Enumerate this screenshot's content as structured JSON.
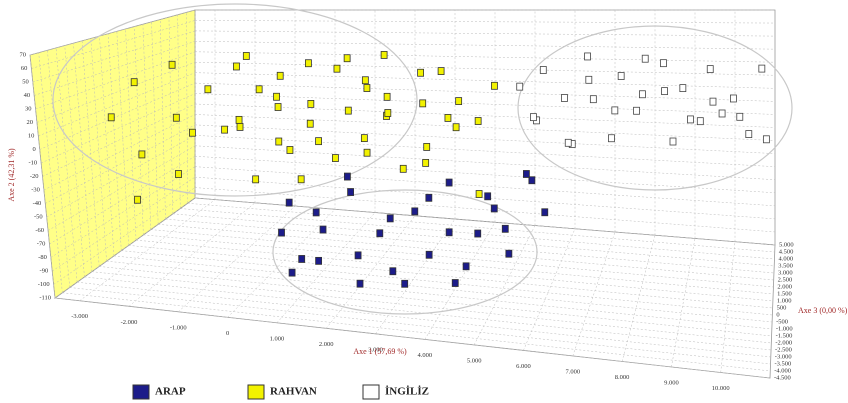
{
  "chart_data": {
    "type": "scatter3d",
    "x_label": "Axe 1 (57,69 %)",
    "y_label": "Axe 2 (42,31 %)",
    "z_label": "Axe 3 (0,00 %)",
    "xlim": [
      -3500,
      11000
    ],
    "ylim": [
      -110,
      70
    ],
    "zlim": [
      -4500,
      5000
    ],
    "grid": true,
    "xticks": [
      {
        "value": -3000,
        "label": "-3.000"
      },
      {
        "value": -2000,
        "label": "-2.000"
      },
      {
        "value": -1000,
        "label": "-1.000"
      },
      0,
      {
        "value": 1000,
        "label": "1.000"
      },
      {
        "value": 2000,
        "label": "2.000"
      },
      {
        "value": 3000,
        "label": "3.000"
      },
      {
        "value": 4000,
        "label": "4.000"
      },
      {
        "value": 5000,
        "label": "5.000"
      },
      {
        "value": 6000,
        "label": "6.000"
      },
      {
        "value": 7000,
        "label": "7.000"
      },
      {
        "value": 8000,
        "label": "8.000"
      },
      {
        "value": 9000,
        "label": "9.000"
      },
      {
        "value": 10000,
        "label": "10.000"
      }
    ],
    "yticks": [
      -110,
      -100,
      -90,
      -80,
      -70,
      -60,
      -50,
      -40,
      -30,
      -20,
      -10,
      0,
      10,
      20,
      30,
      40,
      50,
      60,
      70
    ],
    "zticks": [
      {
        "value": -4500,
        "label": "-4.500"
      },
      {
        "value": -4000,
        "label": "-4.000"
      },
      {
        "value": -3500,
        "label": "-3.500"
      },
      {
        "value": -3000,
        "label": "-3.000"
      },
      {
        "value": -2500,
        "label": "-2.500"
      },
      {
        "value": -2000,
        "label": "-2.000"
      },
      {
        "value": -1500,
        "label": "-1.500"
      },
      {
        "value": -1000,
        "label": "-1.000"
      },
      -500,
      0,
      500,
      {
        "value": 1000,
        "label": "1.000"
      },
      {
        "value": 1500,
        "label": "1.500"
      },
      {
        "value": 2000,
        "label": "2.000"
      },
      {
        "value": 2500,
        "label": "2.500"
      },
      {
        "value": 3000,
        "label": "3.000"
      },
      {
        "value": 3500,
        "label": "3.500"
      },
      {
        "value": 4000,
        "label": "4.000"
      },
      {
        "value": 4500,
        "label": "4.500"
      },
      {
        "value": 5000,
        "label": "5.000"
      }
    ],
    "series": [
      {
        "name": "ARAP",
        "color": "#1c1c8a",
        "x": [
          500,
          800,
          1200,
          1500,
          1900,
          2200,
          2600,
          3000,
          3300,
          3700,
          4000,
          4300,
          4700,
          5000,
          5400,
          5800,
          600,
          1000,
          1400,
          1800,
          2300,
          2800,
          3200,
          3600,
          4100,
          4500,
          4900,
          5300,
          5700,
          6100
        ],
        "y": [
          -70,
          -95,
          -55,
          -80,
          -40,
          -100,
          -65,
          -85,
          -50,
          -75,
          -30,
          -90,
          -60,
          -45,
          -70,
          -25,
          -50,
          -85,
          -65,
          -30,
          -75,
          -55,
          -95,
          -40,
          -60,
          -80,
          -35,
          -55,
          -20,
          -45
        ],
        "z": [
          -1500,
          -2000,
          -1200,
          -2500,
          -900,
          -1800,
          -1400,
          -2200,
          -1000,
          -1700,
          -600,
          -2100,
          -1300,
          -800,
          -1600,
          -500,
          -1100,
          -1900,
          -1500,
          -700,
          -2300,
          -1200,
          -2000,
          -900,
          -1400,
          -1800,
          -1000,
          -1300,
          -600,
          -800
        ]
      },
      {
        "name": "RAHVAN",
        "color": "#f2f200",
        "x": [
          -3000,
          -2700,
          -2500,
          -2200,
          -2000,
          -1800,
          -1500,
          -1300,
          -1100,
          -900,
          -700,
          -500,
          -300,
          -100,
          100,
          300,
          500,
          700,
          900,
          1100,
          1300,
          1500,
          1700,
          1900,
          2100,
          2300,
          2500,
          2700,
          2900,
          3100,
          3300,
          3500,
          3800,
          4100,
          4400,
          -2400,
          -1600,
          -800,
          0,
          600,
          1200,
          1800,
          2400,
          3000,
          3600,
          200,
          -400,
          1000,
          2000,
          4800
        ],
        "y": [
          10,
          35,
          -20,
          45,
          5,
          -35,
          25,
          -10,
          40,
          0,
          20,
          -45,
          30,
          10,
          -25,
          40,
          -5,
          15,
          35,
          -30,
          5,
          25,
          -15,
          45,
          0,
          20,
          -40,
          30,
          10,
          -20,
          35,
          0,
          15,
          -5,
          20,
          -50,
          -5,
          50,
          -15,
          -40,
          45,
          -25,
          10,
          -35,
          -10,
          25,
          5,
          -10,
          30,
          -30
        ],
        "z": [
          -1500,
          -800,
          -1200,
          200,
          -300,
          -1000,
          400,
          800,
          1200,
          600,
          1500,
          300,
          1800,
          900,
          1000,
          2000,
          1300,
          700,
          2200,
          1100,
          1600,
          2400,
          1400,
          2600,
          1900,
          1200,
          1700,
          2800,
          2100,
          1500,
          2300,
          2000,
          1800,
          2500,
          3000,
          -2000,
          -500,
          1000,
          500,
          0,
          2000,
          1200,
          800,
          1800,
          2400,
          -200,
          -1000,
          100,
          600,
          -1500
        ]
      },
      {
        "name": "İNGİLİZ",
        "color": "#ffffff",
        "x": [
          5000,
          5300,
          5600,
          5900,
          6200,
          6500,
          6800,
          7100,
          7400,
          7700,
          8000,
          8300,
          8600,
          8900,
          9200,
          9500,
          9800,
          10100,
          10400,
          10700,
          5400,
          6000,
          6600,
          7200,
          7800,
          8400,
          9000,
          9600,
          10200,
          10800
        ],
        "y": [
          20,
          -10,
          35,
          5,
          -25,
          40,
          15,
          -5,
          30,
          0,
          45,
          10,
          -20,
          25,
          -10,
          35,
          5,
          20,
          -15,
          30,
          0,
          -30,
          25,
          -15,
          10,
          40,
          -5,
          15,
          0,
          -25
        ],
        "z": [
          3000,
          3500,
          2800,
          4000,
          3200,
          3800,
          2600,
          4200,
          3100,
          3600,
          2900,
          4400,
          3300,
          2700,
          4100,
          3400,
          3000,
          2500,
          3700,
          4300,
          2500,
          3900,
          3300,
          2700,
          4000,
          3200,
          3600,
          2800,
          3400,
          4500
        ]
      }
    ]
  }
}
